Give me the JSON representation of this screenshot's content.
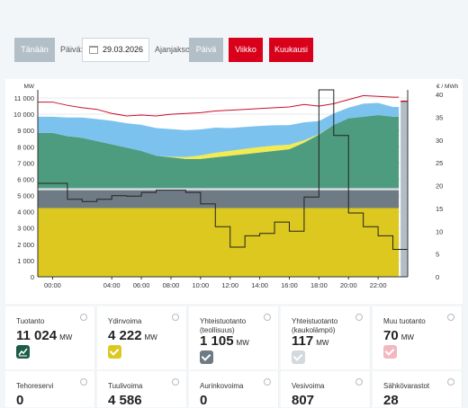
{
  "controls": {
    "today_label": "Tänään",
    "day_label": "Päivä:",
    "date_value": "29.03.2026",
    "period_label": "Ajanjakso:",
    "period_day": "Päivä",
    "period_week": "Viikko",
    "period_month": "Kuukausi"
  },
  "chart_data": {
    "type": "area",
    "y_left_label": "MW",
    "y_right_label": "€ / MWh",
    "y_left_ticks": [
      "0",
      "1 000",
      "2 000",
      "3 000",
      "4 000",
      "5 000",
      "6 000",
      "7 000",
      "8 000",
      "9 000",
      "10 000",
      "11 000"
    ],
    "y_right_ticks": [
      "0",
      "5",
      "10",
      "15",
      "20",
      "25",
      "30",
      "35",
      "40"
    ],
    "x_ticks": [
      "00:00",
      "04:00",
      "06:00",
      "08:00",
      "10:00",
      "12:00",
      "14:00",
      "16:00",
      "18:00",
      "20:00",
      "22:00"
    ],
    "x_tick_hours": [
      0,
      4,
      6,
      8,
      10,
      12,
      14,
      16,
      18,
      20,
      22
    ],
    "ylim_left": [
      0,
      11500
    ],
    "ylim_right": [
      0,
      41
    ],
    "xlim": [
      -1,
      24
    ],
    "hours": [
      0,
      1,
      2,
      3,
      4,
      5,
      6,
      7,
      8,
      9,
      10,
      11,
      12,
      13,
      14,
      15,
      16,
      17,
      18,
      19,
      20,
      21,
      22,
      23
    ],
    "series": [
      {
        "label": "nuclear",
        "color": "#dcc81e",
        "values": [
          4230,
          4230,
          4230,
          4230,
          4230,
          4230,
          4230,
          4230,
          4230,
          4230,
          4230,
          4230,
          4230,
          4230,
          4230,
          4230,
          4230,
          4230,
          4230,
          4230,
          4230,
          4230,
          4230,
          4230
        ]
      },
      {
        "label": "chp_industry",
        "color": "#6e7b85",
        "values": [
          1100,
          1100,
          1100,
          1100,
          1100,
          1100,
          1100,
          1100,
          1100,
          1100,
          1100,
          1100,
          1100,
          1100,
          1100,
          1100,
          1100,
          1100,
          1100,
          1100,
          1100,
          1100,
          1100,
          1100
        ]
      },
      {
        "label": "chp_district",
        "color": "#dadde0",
        "values": [
          120,
          120,
          120,
          120,
          120,
          120,
          120,
          120,
          120,
          120,
          120,
          120,
          120,
          120,
          120,
          120,
          120,
          120,
          120,
          120,
          120,
          120,
          120,
          120
        ]
      },
      {
        "label": "wind",
        "color": "#4e9c80",
        "values": [
          3400,
          3200,
          3100,
          2900,
          2700,
          2500,
          2300,
          2000,
          1900,
          1800,
          1800,
          1900,
          2000,
          2100,
          2200,
          2300,
          2400,
          2800,
          3300,
          3900,
          4300,
          4400,
          4500,
          4400
        ]
      },
      {
        "label": "solar",
        "color": "#f2ec50",
        "values": [
          0,
          0,
          0,
          0,
          0,
          0,
          0,
          0,
          40,
          120,
          220,
          280,
          300,
          320,
          330,
          320,
          280,
          150,
          30,
          0,
          0,
          0,
          0,
          0
        ]
      },
      {
        "label": "hydro",
        "color": "#7cc2ee",
        "values": [
          1000,
          1150,
          1250,
          1350,
          1450,
          1500,
          1600,
          1700,
          1700,
          1650,
          1600,
          1550,
          1400,
          1350,
          1300,
          1250,
          1200,
          1100,
          800,
          700,
          650,
          800,
          750,
          600
        ]
      }
    ],
    "consumption": [
      10750,
      10550,
      10400,
      10300,
      10050,
      9900,
      9950,
      9900,
      10000,
      10050,
      10100,
      10200,
      10250,
      10300,
      10350,
      10400,
      10450,
      10600,
      10500,
      10650,
      10900,
      11150,
      11100,
      11050
    ],
    "price_eur_mwh": [
      20.5,
      17,
      16.5,
      17,
      17.8,
      17.7,
      18.5,
      19,
      19,
      18.5,
      16,
      11,
      6.5,
      9,
      9.5,
      12,
      10,
      17.5,
      41,
      31,
      14,
      11,
      9,
      6
    ]
  },
  "tiles": [
    {
      "title": "Tuotanto",
      "value": "11 024",
      "unit": "MW",
      "check": "dark"
    },
    {
      "title": "Ydinvoima",
      "value": "4 222",
      "unit": "MW",
      "check": "#dcc81e"
    },
    {
      "title": "Yhteistuotanto (teollisuus)",
      "value": "1 105",
      "unit": "MW",
      "check": "#6e7b85"
    },
    {
      "title": "Yhteistuotanto (kaukolämpö)",
      "value": "117",
      "unit": "MW",
      "check": "#d4d9de"
    },
    {
      "title": "Muu tuotanto",
      "value": "70",
      "unit": "MW",
      "check": "#f2b8c2"
    },
    {
      "title": "Tehoreservi",
      "value": "0",
      "unit": ""
    },
    {
      "title": "Tuulivoima",
      "value": "4 586",
      "unit": ""
    },
    {
      "title": "Aurinkovoima",
      "value": "0",
      "unit": ""
    },
    {
      "title": "Vesivoima",
      "value": "807",
      "unit": ""
    },
    {
      "title": "Sähkövarastot",
      "value": "28",
      "unit": ""
    }
  ]
}
